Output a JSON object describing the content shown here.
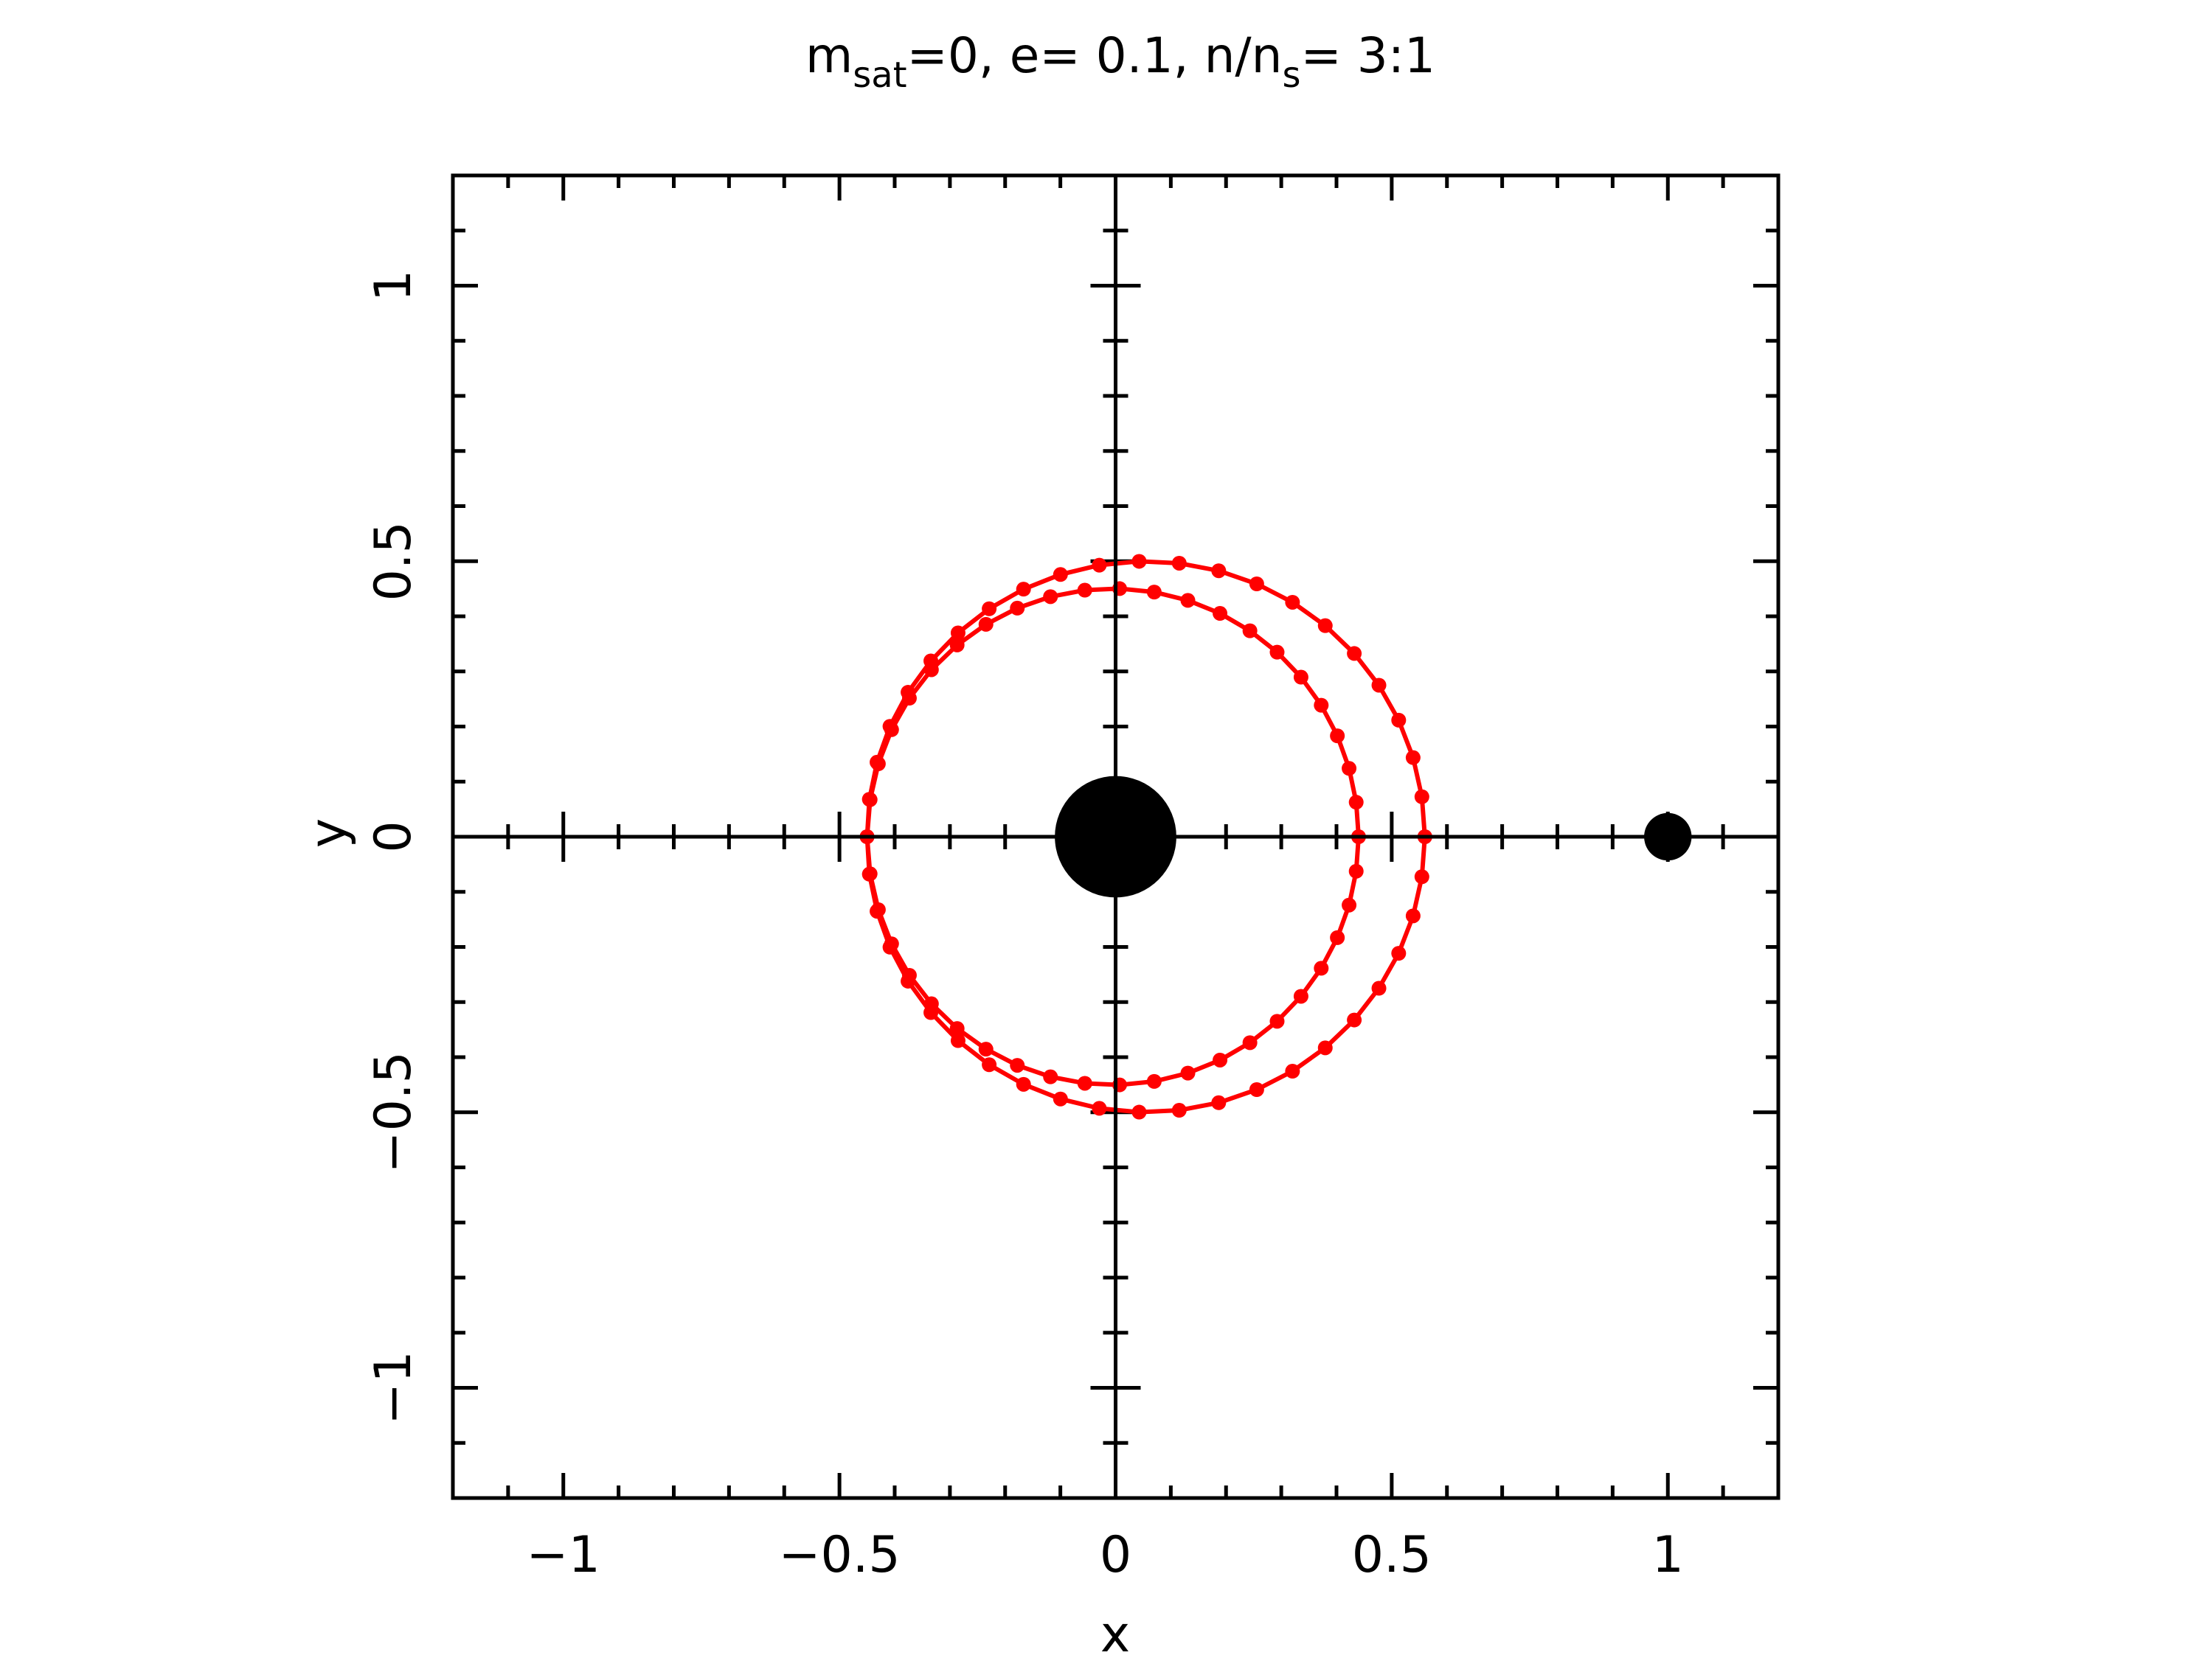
{
  "chart_data": {
    "type": "scatter",
    "title": {
      "m": "m",
      "m_sub": "sat",
      "part2": "=0, e= 0.1, n/n",
      "n_sub": "s",
      "part3": "= 3:1"
    },
    "xlabel": "x",
    "ylabel": "y",
    "xlim": [
      -1.2,
      1.2
    ],
    "ylim": [
      -1.2,
      1.2
    ],
    "grid": false,
    "legend": "none",
    "xticks": [
      {
        "value": -1,
        "label": "−1"
      },
      {
        "value": -0.5,
        "label": "−0.5"
      },
      {
        "value": 0,
        "label": "0"
      },
      {
        "value": 0.5,
        "label": "0.5"
      },
      {
        "value": 1,
        "label": "1"
      }
    ],
    "yticks": [
      {
        "value": -1,
        "label": "−1"
      },
      {
        "value": -0.5,
        "label": "−0.5"
      },
      {
        "value": 0,
        "label": "0"
      },
      {
        "value": 0.5,
        "label": "0.5"
      },
      {
        "value": 1,
        "label": "1"
      }
    ],
    "minor_tick_step": 0.1,
    "bodies": [
      {
        "name": "central-body",
        "x": 0,
        "y": 0,
        "radius": 0.11,
        "color": "#000000"
      },
      {
        "name": "satellite",
        "x": 1.0,
        "y": 0,
        "radius": 0.043,
        "color": "#000000"
      }
    ],
    "orbit": {
      "color": "#ff0000",
      "eccentricity": 0.1,
      "mean_motion_ratio": 3,
      "num_points": 89,
      "x_extent": [
        -0.48,
        0.53
      ],
      "y_extent": [
        -0.51,
        0.51
      ],
      "inner_loop": {
        "x_extent": [
          -0.47,
          0.43
        ],
        "y_extent": [
          -0.44,
          0.44
        ]
      }
    }
  }
}
